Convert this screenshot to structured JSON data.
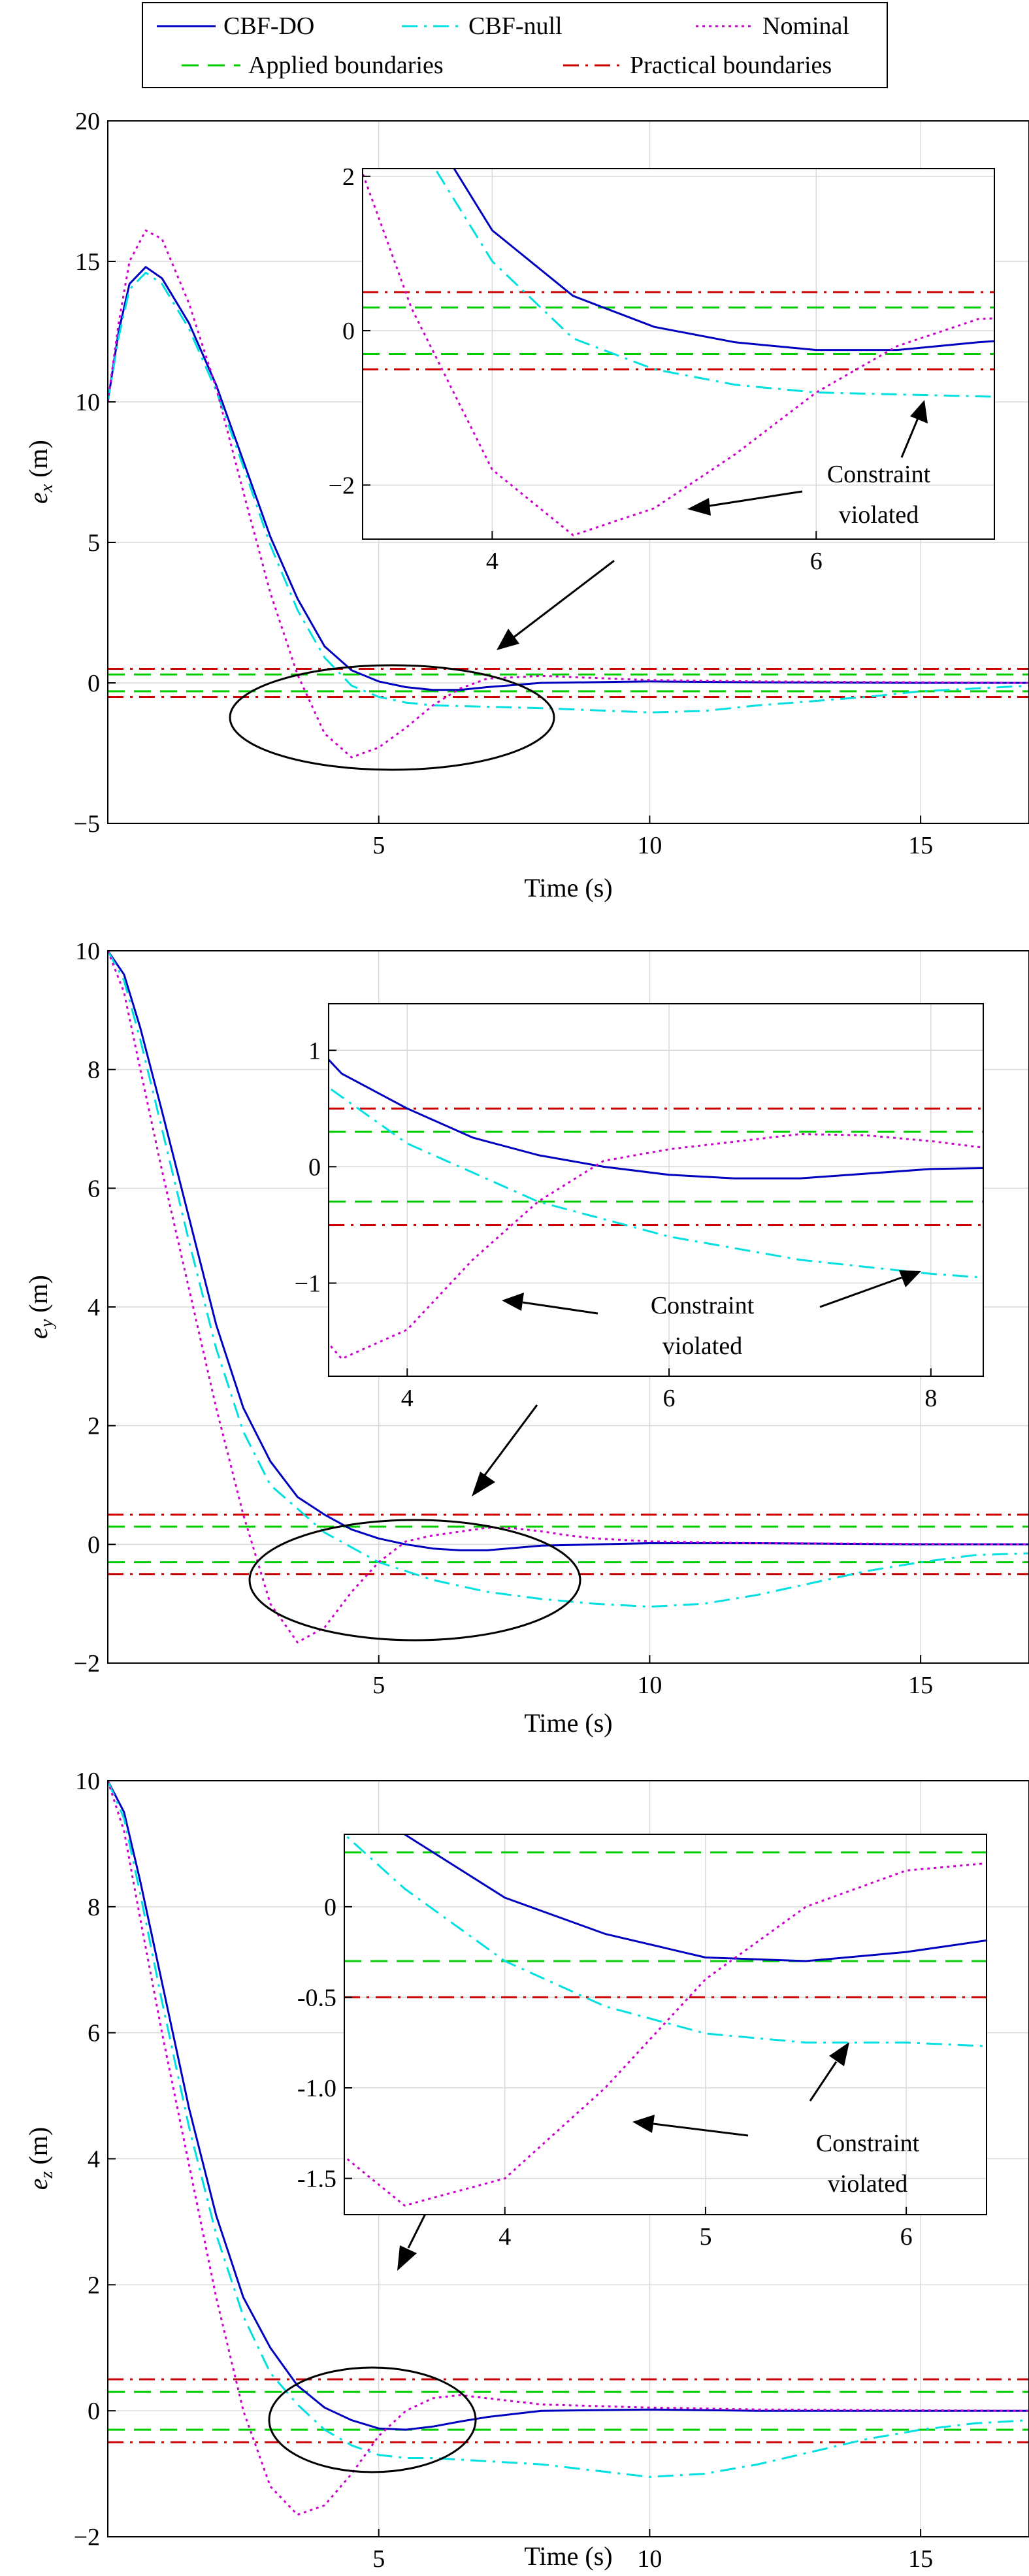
{
  "legend": {
    "items": [
      {
        "label": "CBF-DO",
        "color": "#0000bf",
        "dash": "solid"
      },
      {
        "label": "CBF-null",
        "color": "#00e0e0",
        "dash": "dashdot"
      },
      {
        "label": "Nominal",
        "color": "#cc00cc",
        "dash": "dotted"
      },
      {
        "label": "Applied boundaries",
        "color": "#00cc00",
        "dash": "dashed"
      },
      {
        "label": "Practical boundaries",
        "color": "#cc0000",
        "dash": "dashdot"
      }
    ]
  },
  "chart_data": [
    {
      "type": "line",
      "xlabel": "Time (s)",
      "ylabel": "e_x (m)",
      "ylabel_parts": {
        "var": "e",
        "sub": "x",
        "unit": " (m)"
      },
      "xlim": [
        0,
        17
      ],
      "ylim": [
        -5,
        20
      ],
      "xticks": [
        5,
        10,
        15
      ],
      "yticks": [
        -5,
        0,
        5,
        10,
        15,
        20
      ],
      "ytick_labels": [
        "−5",
        "0",
        "5",
        "10",
        "15",
        "20"
      ],
      "grid": true,
      "boundaries": {
        "applied": [
          0.3,
          -0.3
        ],
        "practical": [
          0.5,
          -0.5
        ]
      },
      "series": [
        {
          "name": "CBF-DO",
          "points": [
            [
              0,
              10
            ],
            [
              0.2,
              12.5
            ],
            [
              0.4,
              14.2
            ],
            [
              0.7,
              14.8
            ],
            [
              1,
              14.4
            ],
            [
              1.5,
              12.8
            ],
            [
              2,
              10.6
            ],
            [
              2.5,
              7.9
            ],
            [
              3,
              5.2
            ],
            [
              3.5,
              3
            ],
            [
              4,
              1.3
            ],
            [
              4.5,
              0.45
            ],
            [
              5,
              0.05
            ],
            [
              5.5,
              -0.15
            ],
            [
              6,
              -0.25
            ],
            [
              6.5,
              -0.25
            ],
            [
              7,
              -0.15
            ],
            [
              8,
              0
            ],
            [
              10,
              0.05
            ],
            [
              12,
              0.02
            ],
            [
              15,
              0
            ],
            [
              17,
              0
            ]
          ]
        },
        {
          "name": "CBF-null",
          "points": [
            [
              0,
              10
            ],
            [
              0.2,
              12.3
            ],
            [
              0.4,
              14
            ],
            [
              0.7,
              14.6
            ],
            [
              1,
              14.2
            ],
            [
              1.5,
              12.6
            ],
            [
              2,
              10.4
            ],
            [
              2.5,
              7.7
            ],
            [
              3,
              4.9
            ],
            [
              3.5,
              2.6
            ],
            [
              4,
              0.9
            ],
            [
              4.5,
              -0.1
            ],
            [
              5,
              -0.5
            ],
            [
              5.5,
              -0.7
            ],
            [
              6,
              -0.8
            ],
            [
              7,
              -0.85
            ],
            [
              8,
              -0.9
            ],
            [
              10,
              -1.05
            ],
            [
              11,
              -1
            ],
            [
              12,
              -0.8
            ],
            [
              14,
              -0.5
            ],
            [
              15,
              -0.3
            ],
            [
              17,
              -0.1
            ]
          ]
        },
        {
          "name": "Nominal",
          "points": [
            [
              0,
              10
            ],
            [
              0.2,
              12.8
            ],
            [
              0.4,
              15
            ],
            [
              0.7,
              16.1
            ],
            [
              1,
              15.8
            ],
            [
              1.5,
              13.5
            ],
            [
              2,
              10.5
            ],
            [
              2.5,
              6.8
            ],
            [
              3,
              3.2
            ],
            [
              3.5,
              0.3
            ],
            [
              4,
              -1.8
            ],
            [
              4.5,
              -2.65
            ],
            [
              5,
              -2.3
            ],
            [
              5.5,
              -1.6
            ],
            [
              6,
              -0.8
            ],
            [
              6.5,
              -0.2
            ],
            [
              7,
              0.15
            ],
            [
              8,
              0.25
            ],
            [
              10,
              0.1
            ],
            [
              12,
              0.05
            ],
            [
              17,
              0
            ]
          ]
        }
      ],
      "inset": {
        "xlim": [
          3.2,
          7.1
        ],
        "ylim": [
          -2.7,
          2.1
        ],
        "xticks": [
          4,
          6
        ],
        "yticks": [
          -2,
          0,
          2
        ],
        "ytick_labels": [
          "−2",
          "0",
          "2"
        ],
        "annotation": {
          "line1": "Constraint",
          "line2": "violated"
        }
      }
    },
    {
      "type": "line",
      "xlabel": "Time (s)",
      "ylabel": "e_y (m)",
      "ylabel_parts": {
        "var": "e",
        "sub": "y",
        "unit": " (m)"
      },
      "xlim": [
        0,
        17
      ],
      "ylim": [
        -2,
        10
      ],
      "xticks": [
        5,
        10,
        15
      ],
      "yticks": [
        -2,
        0,
        2,
        4,
        6,
        8,
        10
      ],
      "ytick_labels": [
        "−2",
        "0",
        "2",
        "4",
        "6",
        "8",
        "10"
      ],
      "grid": true,
      "boundaries": {
        "applied": [
          0.3,
          -0.3
        ],
        "practical": [
          0.5,
          -0.5
        ]
      },
      "series": [
        {
          "name": "CBF-DO",
          "points": [
            [
              0,
              10
            ],
            [
              0.3,
              9.6
            ],
            [
              0.6,
              8.7
            ],
            [
              1,
              7.3
            ],
            [
              1.5,
              5.5
            ],
            [
              2,
              3.7
            ],
            [
              2.5,
              2.3
            ],
            [
              3,
              1.4
            ],
            [
              3.5,
              0.8
            ],
            [
              4,
              0.5
            ],
            [
              4.5,
              0.25
            ],
            [
              5,
              0.1
            ],
            [
              5.5,
              0
            ],
            [
              6,
              -0.07
            ],
            [
              6.5,
              -0.1
            ],
            [
              7,
              -0.1
            ],
            [
              8,
              -0.02
            ],
            [
              10,
              0.02
            ],
            [
              12,
              0.02
            ],
            [
              15,
              0
            ],
            [
              17,
              0
            ]
          ]
        },
        {
          "name": "CBF-null",
          "points": [
            [
              0,
              10
            ],
            [
              0.3,
              9.5
            ],
            [
              0.6,
              8.5
            ],
            [
              1,
              7
            ],
            [
              1.5,
              5.1
            ],
            [
              2,
              3.3
            ],
            [
              2.5,
              1.9
            ],
            [
              3,
              1
            ],
            [
              3.5,
              0.6
            ],
            [
              4,
              0.2
            ],
            [
              4.5,
              -0.05
            ],
            [
              5,
              -0.3
            ],
            [
              6,
              -0.6
            ],
            [
              7,
              -0.8
            ],
            [
              8,
              -0.92
            ],
            [
              9,
              -1
            ],
            [
              10,
              -1.05
            ],
            [
              11,
              -1
            ],
            [
              12,
              -0.85
            ],
            [
              13,
              -0.65
            ],
            [
              14,
              -0.45
            ],
            [
              15,
              -0.3
            ],
            [
              16,
              -0.18
            ],
            [
              17,
              -0.15
            ]
          ]
        },
        {
          "name": "Nominal",
          "points": [
            [
              0,
              10
            ],
            [
              0.3,
              9.3
            ],
            [
              0.6,
              8
            ],
            [
              1,
              6.3
            ],
            [
              1.5,
              4.3
            ],
            [
              2,
              2.3
            ],
            [
              2.5,
              0.5
            ],
            [
              3,
              -1
            ],
            [
              3.5,
              -1.65
            ],
            [
              4,
              -1.4
            ],
            [
              4.5,
              -0.8
            ],
            [
              5,
              -0.3
            ],
            [
              5.5,
              0.05
            ],
            [
              6,
              0.15
            ],
            [
              7,
              0.28
            ],
            [
              7.5,
              0.27
            ],
            [
              8,
              0.22
            ],
            [
              8.5,
              0.15
            ],
            [
              9,
              0.1
            ],
            [
              10,
              0.05
            ],
            [
              12,
              0.02
            ],
            [
              17,
              0
            ]
          ]
        }
      ],
      "inset": {
        "xlim": [
          3.4,
          8.4
        ],
        "ylim": [
          -1.8,
          1.4
        ],
        "xticks": [
          4,
          6,
          8
        ],
        "yticks": [
          -1,
          0,
          1
        ],
        "ytick_labels": [
          "−1",
          "0",
          "1"
        ],
        "annotation": {
          "line1": "Constraint",
          "line2": "violated"
        }
      }
    },
    {
      "type": "line",
      "xlabel": "Time (s)",
      "ylabel": "e_z (m)",
      "ylabel_parts": {
        "var": "e",
        "sub": "z",
        "unit": " (m)"
      },
      "xlim": [
        0,
        17
      ],
      "ylim": [
        -2,
        10
      ],
      "xticks": [
        5,
        10,
        15
      ],
      "yticks": [
        -2,
        0,
        2,
        4,
        6,
        8,
        10
      ],
      "ytick_labels": [
        "−2",
        "0",
        "2",
        "4",
        "6",
        "8",
        "10"
      ],
      "grid": true,
      "boundaries": {
        "applied": [
          0.3,
          -0.3
        ],
        "practical": [
          0.5,
          -0.5
        ]
      },
      "series": [
        {
          "name": "CBF-DO",
          "points": [
            [
              0,
              10
            ],
            [
              0.3,
              9.5
            ],
            [
              0.6,
              8.4
            ],
            [
              1,
              6.8
            ],
            [
              1.5,
              4.8
            ],
            [
              2,
              3.1
            ],
            [
              2.5,
              1.8
            ],
            [
              3,
              1
            ],
            [
              3.5,
              0.4
            ],
            [
              4,
              0.05
            ],
            [
              4.5,
              -0.15
            ],
            [
              5,
              -0.28
            ],
            [
              5.5,
              -0.3
            ],
            [
              6,
              -0.25
            ],
            [
              6.5,
              -0.17
            ],
            [
              7,
              -0.1
            ],
            [
              8,
              0
            ],
            [
              10,
              0.02
            ],
            [
              12,
              0
            ],
            [
              17,
              0
            ]
          ]
        },
        {
          "name": "CBF-null",
          "points": [
            [
              0,
              10
            ],
            [
              0.3,
              9.4
            ],
            [
              0.6,
              8.2
            ],
            [
              1,
              6.5
            ],
            [
              1.5,
              4.5
            ],
            [
              2,
              2.8
            ],
            [
              2.5,
              1.5
            ],
            [
              3,
              0.6
            ],
            [
              3.5,
              0.1
            ],
            [
              4,
              -0.3
            ],
            [
              4.5,
              -0.55
            ],
            [
              5,
              -0.7
            ],
            [
              5.5,
              -0.75
            ],
            [
              6,
              -0.75
            ],
            [
              7,
              -0.8
            ],
            [
              8,
              -0.85
            ],
            [
              9,
              -0.95
            ],
            [
              10,
              -1.05
            ],
            [
              11,
              -1
            ],
            [
              12,
              -0.85
            ],
            [
              13,
              -0.65
            ],
            [
              14,
              -0.45
            ],
            [
              15,
              -0.3
            ],
            [
              16,
              -0.2
            ],
            [
              17,
              -0.15
            ]
          ]
        },
        {
          "name": "Nominal",
          "points": [
            [
              0,
              10
            ],
            [
              0.3,
              9.2
            ],
            [
              0.6,
              7.8
            ],
            [
              1,
              6
            ],
            [
              1.5,
              3.9
            ],
            [
              2,
              1.8
            ],
            [
              2.5,
              0
            ],
            [
              3,
              -1.2
            ],
            [
              3.5,
              -1.65
            ],
            [
              4,
              -1.5
            ],
            [
              4.5,
              -1
            ],
            [
              5,
              -0.4
            ],
            [
              5.5,
              0
            ],
            [
              6,
              0.2
            ],
            [
              6.5,
              0.25
            ],
            [
              7,
              0.2
            ],
            [
              8,
              0.1
            ],
            [
              10,
              0.05
            ],
            [
              12,
              0.02
            ],
            [
              17,
              0
            ]
          ]
        }
      ],
      "inset": {
        "xlim": [
          3.2,
          6.4
        ],
        "ylim": [
          -1.7,
          0.4
        ],
        "xticks": [
          4,
          5,
          6
        ],
        "yticks": [
          -1.5,
          -1.0,
          -0.5,
          0
        ],
        "ytick_labels": [
          "-1.5",
          "-1.0",
          "-0.5",
          "0"
        ],
        "annotation": {
          "line1": "Constraint",
          "line2": "violated"
        }
      }
    }
  ]
}
